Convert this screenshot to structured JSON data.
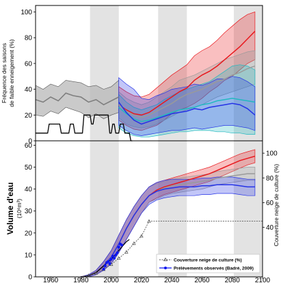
{
  "chart_data": [
    {
      "type": "line",
      "name": "top-panel",
      "ylabel": "Fréquence des saisons de faible enneigement (%)",
      "xlim": [
        1950,
        2100
      ],
      "ylim": [
        0,
        105
      ],
      "yticks": [
        0,
        20,
        40,
        60,
        80,
        100
      ],
      "grid": false,
      "shaded_periods": [
        [
          1986,
          2005
        ],
        [
          2031,
          2050
        ],
        [
          2081,
          2100
        ]
      ],
      "colors": {
        "observed": "#000000",
        "historical": "#7f7f7f",
        "red": "#e8181d",
        "gray": "#9a9a9a",
        "cyan": "#22b8c0",
        "blue": "#2432e6"
      },
      "observed": {
        "x": [
          1950,
          1958,
          1959,
          1966,
          1967,
          1972,
          1973,
          1975,
          1976,
          1981,
          1982,
          1986,
          1987,
          1988,
          1989,
          1998,
          1999,
          2000,
          2001,
          2002,
          2003,
          2005,
          2006,
          2008,
          2009,
          2012,
          2013,
          2014
        ],
        "y": [
          6,
          6,
          13,
          13,
          6,
          6,
          13,
          13,
          6,
          6,
          20,
          20,
          13,
          13,
          20,
          20,
          6,
          6,
          13,
          13,
          6,
          6,
          13,
          13,
          6,
          6,
          0,
          0
        ]
      },
      "historical": {
        "x": [
          1950,
          1955,
          1960,
          1965,
          1970,
          1975,
          1980,
          1985,
          1990,
          1995,
          2000,
          2005
        ],
        "mean": [
          32,
          30,
          34,
          31,
          37,
          35,
          34,
          30,
          32,
          28,
          31,
          34
        ],
        "upper": [
          43,
          40,
          44,
          42,
          47,
          46,
          45,
          42,
          43,
          40,
          42,
          47
        ],
        "lower": [
          20,
          19,
          23,
          21,
          26,
          24,
          22,
          18,
          21,
          17,
          20,
          22
        ]
      },
      "series": [
        {
          "color": "red",
          "x": [
            2005,
            2010,
            2015,
            2020,
            2025,
            2030,
            2035,
            2040,
            2045,
            2050,
            2055,
            2060,
            2065,
            2070,
            2075,
            2080,
            2085,
            2090,
            2095
          ],
          "mean": [
            28,
            24,
            21,
            20,
            22,
            26,
            30,
            34,
            38,
            41,
            47,
            51,
            54,
            58,
            63,
            68,
            73,
            79,
            85
          ],
          "upper": [
            42,
            38,
            35,
            34,
            36,
            41,
            46,
            51,
            55,
            59,
            66,
            70,
            73,
            78,
            84,
            89,
            94,
            98,
            100
          ],
          "lower": [
            16,
            12,
            9,
            8,
            10,
            12,
            16,
            21,
            24,
            26,
            29,
            33,
            38,
            42,
            47,
            50,
            55,
            60,
            63
          ]
        },
        {
          "color": "gray",
          "x": [
            2005,
            2010,
            2015,
            2020,
            2025,
            2030,
            2035,
            2040,
            2045,
            2050,
            2055,
            2060,
            2065,
            2070,
            2075,
            2080,
            2085,
            2090,
            2095
          ],
          "mean": [
            28,
            23,
            20,
            18,
            20,
            23,
            26,
            29,
            33,
            36,
            38,
            40,
            43,
            46,
            48,
            51,
            53,
            56,
            58
          ],
          "upper": [
            38,
            33,
            30,
            28,
            30,
            34,
            38,
            42,
            47,
            49,
            51,
            54,
            57,
            60,
            63,
            65,
            67,
            69,
            70
          ],
          "lower": [
            18,
            13,
            11,
            10,
            11,
            13,
            16,
            19,
            22,
            24,
            26,
            28,
            31,
            34,
            36,
            38,
            40,
            42,
            44
          ]
        },
        {
          "color": "cyan",
          "x": [
            2005,
            2010,
            2015,
            2020,
            2025,
            2030,
            2035,
            2040,
            2045,
            2050,
            2055,
            2060,
            2065,
            2070,
            2075,
            2080,
            2085,
            2090,
            2095
          ],
          "mean": [
            26,
            21,
            17,
            15,
            16,
            18,
            20,
            22,
            24,
            25,
            26,
            28,
            29,
            31,
            32,
            33,
            32,
            31,
            30
          ],
          "upper": [
            36,
            30,
            26,
            24,
            26,
            28,
            32,
            35,
            38,
            40,
            42,
            44,
            46,
            50,
            54,
            58,
            59,
            58,
            55
          ],
          "lower": [
            10,
            6,
            4,
            3,
            3,
            4,
            5,
            6,
            7,
            7,
            8,
            8,
            8,
            7,
            7,
            6,
            6,
            5,
            5
          ]
        },
        {
          "color": "blue",
          "x": [
            2005,
            2010,
            2015,
            2020,
            2025,
            2030,
            2035,
            2040,
            2045,
            2050,
            2055,
            2060,
            2065,
            2070,
            2075,
            2080,
            2085,
            2090,
            2095
          ],
          "mean": [
            30,
            22,
            16,
            13,
            15,
            17,
            19,
            21,
            22,
            23,
            25,
            24,
            26,
            27,
            28,
            29,
            28,
            25,
            20
          ],
          "upper": [
            49,
            44,
            40,
            33,
            32,
            35,
            37,
            40,
            41,
            42,
            44,
            43,
            45,
            48,
            48,
            50,
            49,
            46,
            42
          ],
          "lower": [
            12,
            8,
            5,
            4,
            5,
            6,
            7,
            8,
            8,
            9,
            10,
            9,
            10,
            11,
            12,
            12,
            11,
            10,
            8
          ]
        }
      ]
    },
    {
      "type": "line",
      "name": "bottom-panel",
      "ylabel": "Volume d'eau",
      "ylabel_unit": "(10⁶m³)",
      "ylabel_right": "Couverture neige de culture (%)",
      "xlim": [
        1950,
        2100
      ],
      "ylim": [
        0,
        62
      ],
      "yticks": [
        0,
        10,
        20,
        30,
        40,
        50,
        60
      ],
      "xticks": [
        1960,
        1980,
        2000,
        2020,
        2040,
        2060,
        2080,
        2100
      ],
      "right_ylim": [
        0,
        110
      ],
      "right_yticks": [
        40,
        60,
        80,
        100
      ],
      "grid": false,
      "shaded_periods": [
        [
          1986,
          2005
        ],
        [
          2031,
          2050
        ],
        [
          2081,
          2100
        ]
      ],
      "colors": {
        "red": "#e8181d",
        "gray": "#9a9a9a",
        "blue": "#2432e6",
        "coverage": "#555555",
        "observed": "#0b14f0"
      },
      "coverage": {
        "x": [
          1950,
          1980,
          1985,
          1990,
          1995,
          2000,
          2005,
          2010,
          2015,
          2020,
          2025,
          2100
        ],
        "y": [
          0,
          0,
          1,
          3,
          6,
          10,
          15,
          20,
          27,
          33,
          45,
          45
        ]
      },
      "historical": {
        "x": [
          1980,
          1985,
          1990,
          1995,
          2000,
          2005,
          2010,
          2012
        ],
        "y": [
          0,
          0.5,
          2,
          5,
          8,
          12,
          16,
          17
        ]
      },
      "observed_points": {
        "x": [
          1995,
          1996,
          1997,
          1998,
          1999,
          2000,
          2001,
          2002,
          2003,
          2004,
          2005,
          2006,
          2007
        ],
        "y": [
          3.5,
          5,
          6.5,
          7,
          6,
          8,
          9.5,
          8.5,
          10,
          11,
          13.5,
          15,
          14.5
        ]
      },
      "series": [
        {
          "color": "red",
          "x": [
            1980,
            1985,
            1990,
            1995,
            2000,
            2005,
            2010,
            2015,
            2020,
            2025,
            2030,
            2035,
            2040,
            2045,
            2050,
            2055,
            2060,
            2065,
            2070,
            2075,
            2080,
            2085,
            2090,
            2095
          ],
          "mean": [
            0,
            0.5,
            2,
            5,
            9,
            15,
            22,
            28,
            33,
            37,
            39.5,
            41,
            42,
            43,
            44,
            45,
            46,
            47,
            48.5,
            50,
            51.5,
            53,
            54,
            55
          ],
          "upper": [
            0,
            1,
            3,
            7,
            12,
            19,
            26,
            32,
            37,
            41,
            43,
            44,
            45,
            46,
            47,
            48,
            49,
            50,
            51.5,
            53,
            54.5,
            56,
            57,
            58
          ],
          "lower": [
            0,
            0,
            1,
            3,
            6,
            11,
            17,
            23,
            29,
            34,
            36,
            37.5,
            38.5,
            39.5,
            40.5,
            41.5,
            42.5,
            43.5,
            45,
            46.5,
            48,
            49.5,
            51,
            52
          ]
        },
        {
          "color": "gray",
          "x": [
            1980,
            1985,
            1990,
            1995,
            2000,
            2005,
            2010,
            2015,
            2020,
            2025,
            2030,
            2035,
            2040,
            2045,
            2050,
            2055,
            2060,
            2065,
            2070,
            2075,
            2080,
            2085,
            2090,
            2095
          ],
          "mean": [
            0,
            0.5,
            2,
            5,
            9,
            15,
            22,
            28,
            33,
            37,
            39,
            40.5,
            41.5,
            42,
            42.5,
            43,
            43.5,
            44,
            45,
            45.5,
            46,
            46.5,
            47,
            47
          ],
          "upper": [
            0,
            1,
            3,
            7,
            12,
            19,
            26,
            32,
            37,
            41,
            42.5,
            43.5,
            44.5,
            45,
            45.5,
            46,
            46.5,
            47,
            48,
            48.5,
            49,
            49.5,
            50,
            50
          ],
          "lower": [
            0,
            0,
            1,
            3,
            6,
            11,
            17,
            23,
            29,
            34,
            35.5,
            37,
            38,
            38.5,
            39,
            39.5,
            40,
            41,
            42,
            42.5,
            43,
            43.5,
            44,
            44
          ]
        },
        {
          "color": "blue",
          "x": [
            1980,
            1985,
            1990,
            1995,
            2000,
            2005,
            2010,
            2015,
            2020,
            2025,
            2030,
            2035,
            2040,
            2045,
            2050,
            2055,
            2060,
            2065,
            2070,
            2075,
            2080,
            2085,
            2090,
            2095
          ],
          "mean": [
            0,
            0.5,
            2,
            5,
            9,
            15,
            22,
            28,
            33,
            37,
            39,
            40,
            40.5,
            41,
            41,
            41,
            41.5,
            41.5,
            42,
            42,
            42,
            41.5,
            41,
            41
          ],
          "upper": [
            0,
            1,
            3,
            7,
            12,
            19,
            26,
            32,
            37,
            41,
            43,
            44,
            44.5,
            44.5,
            44.5,
            44.5,
            45,
            45,
            45.5,
            45.5,
            45.5,
            45,
            44.5,
            44.5
          ],
          "lower": [
            0,
            0,
            1,
            3,
            6,
            11,
            17,
            23,
            29,
            33,
            35,
            36,
            36.5,
            37,
            37,
            37,
            37.5,
            37.5,
            38,
            38,
            38,
            37.5,
            37,
            37
          ]
        }
      ],
      "legend": {
        "position": "lower-right",
        "entries": [
          "Couverture neige de culture (%)",
          "Prélèvements observés (Badré, 2009)"
        ]
      }
    }
  ]
}
